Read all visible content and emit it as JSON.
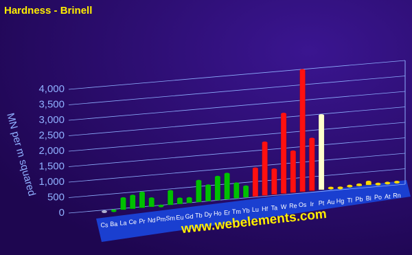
{
  "chart_data": {
    "type": "bar3d",
    "title": "Hardness - Brinell",
    "y_label": "MN per m squared",
    "watermark": "www.webelements.com",
    "categories": [
      "Cs",
      "Ba",
      "La",
      "Ce",
      "Pr",
      "Nd",
      "Pm",
      "Sm",
      "Eu",
      "Gd",
      "Tb",
      "Dy",
      "Ho",
      "Er",
      "Tm",
      "Yb",
      "Lu",
      "Hf",
      "Ta",
      "W",
      "Re",
      "Os",
      "Ir",
      "Pt",
      "Au",
      "Hg",
      "Tl",
      "Pb",
      "Bi",
      "Po",
      "At",
      "Rn"
    ],
    "values": [
      0.14,
      null,
      363,
      412,
      481,
      265,
      null,
      441,
      167,
      150,
      677,
      500,
      746,
      814,
      471,
      343,
      893,
      1700,
      800,
      2570,
      1320,
      3920,
      1670,
      2400,
      25,
      null,
      26.4,
      38.3,
      94.2,
      null,
      null,
      null
    ],
    "colors": [
      "#b0b0d0",
      "#00c000",
      "#00c000",
      "#00c000",
      "#00c000",
      "#00c000",
      "#00c000",
      "#00c000",
      "#00c000",
      "#00c000",
      "#00c000",
      "#00c000",
      "#00c000",
      "#00c000",
      "#00c000",
      "#00c000",
      "#ff1010",
      "#ff1010",
      "#ff1010",
      "#ff1010",
      "#ff1010",
      "#ff1010",
      "#ff1010",
      "#ffffcc",
      "#ffd800",
      "#ffd800",
      "#ffd800",
      "#ffd800",
      "#ffd800",
      "#ffd800",
      "#ffd800",
      "#ffd800"
    ],
    "ylim": [
      0,
      4000
    ],
    "yticks": [
      0,
      500,
      {
        "value": 1000,
        "label": "1,000"
      },
      {
        "value": 1500,
        "label": "1,500"
      },
      {
        "value": 2000,
        "label": "2,000"
      },
      {
        "value": 2500,
        "label": "2,500"
      },
      {
        "value": 3000,
        "label": "3,000"
      },
      {
        "value": 3500,
        "label": "3,500"
      },
      {
        "value": 4000,
        "label": "4,000"
      }
    ],
    "grid": true
  }
}
